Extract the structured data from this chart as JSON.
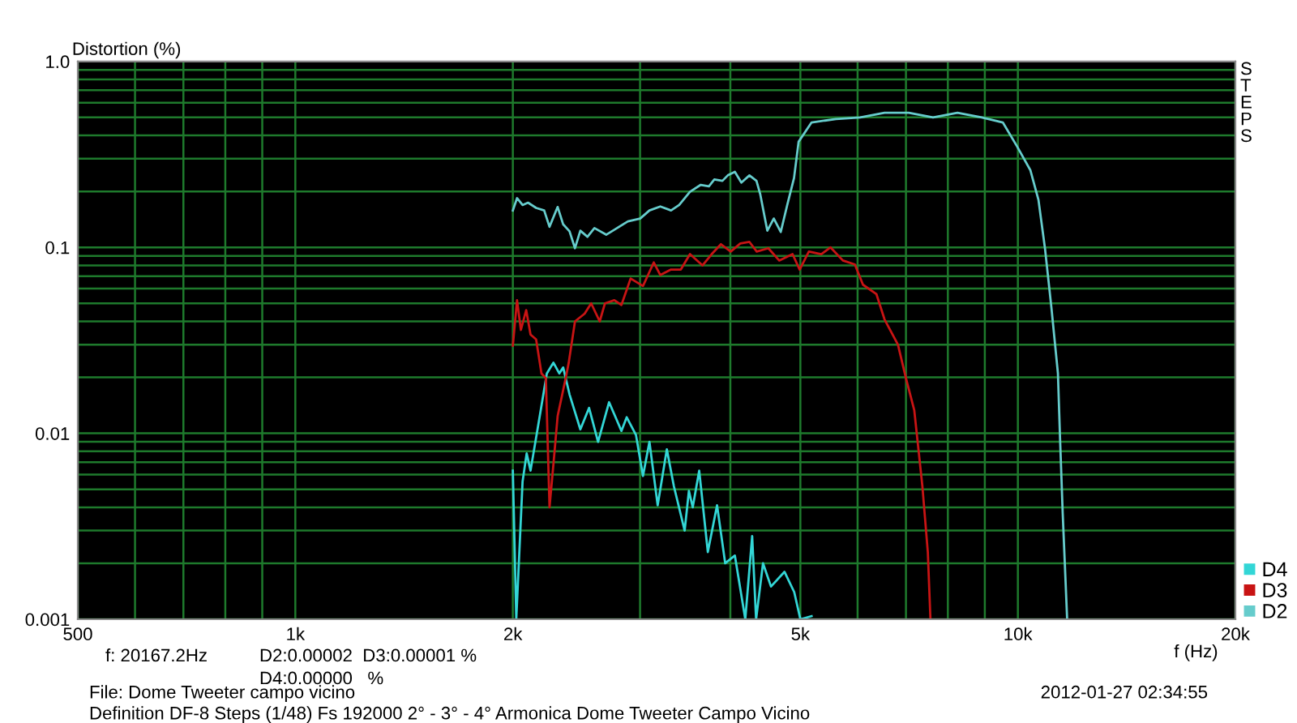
{
  "chart_data": {
    "type": "line",
    "ylabel": "Distortion (%)",
    "xlabel": "f (Hz)",
    "annotations": [
      "STEPS",
      "f: 20167.2Hz",
      "D2:0.00002  D3:0.00001 %",
      "D4:0.00000   %",
      "File: Dome Tweeter campo vicino",
      "Definition DF-8 Steps (1/48) Fs 192000 2° - 3° - 4° Armonica Dome Tweeter Campo Vicino",
      "2012-01-27 02:34:55"
    ],
    "log": "xy",
    "grid": true,
    "legend": "bottom right",
    "line_style": "solid",
    "xlim": [
      500,
      20000
    ],
    "ylim": [
      0.001,
      1
    ],
    "xticks": [
      500,
      {
        "value": 1000,
        "label": "1k"
      },
      {
        "value": 2000,
        "label": "2k"
      },
      {
        "value": 5000,
        "label": "5k"
      },
      {
        "value": 10000,
        "label": "10k"
      },
      {
        "value": 20000,
        "label": "20k"
      }
    ],
    "yticks": [
      0.001,
      0.01,
      0.1,
      {
        "value": 1,
        "label": "1.0"
      }
    ],
    "series": [
      {
        "name": "D4",
        "color": "#33d6d6",
        "x": [
          2000,
          2022,
          2063,
          2090,
          2116,
          2173,
          2229,
          2276,
          2319,
          2348,
          2396,
          2480,
          2550,
          2624,
          2718,
          2827,
          2875,
          2961,
          3028,
          3091,
          3173,
          3267,
          3341,
          3458,
          3505,
          3548,
          3622,
          3723,
          3834,
          3935,
          4058,
          4195,
          4288,
          4342,
          4439,
          4553,
          4753,
          4903,
          5000,
          5182
        ],
        "values": [
          0.0063,
          0.001,
          0.0055,
          0.0078,
          0.0063,
          0.0116,
          0.021,
          0.024,
          0.021,
          0.0226,
          0.0162,
          0.0105,
          0.0137,
          0.009,
          0.0147,
          0.0103,
          0.0122,
          0.0098,
          0.0059,
          0.009,
          0.0041,
          0.0082,
          0.0052,
          0.003,
          0.0049,
          0.004,
          0.0063,
          0.0023,
          0.0041,
          0.002,
          0.0022,
          0.001,
          0.0028,
          0.001,
          0.002,
          0.0015,
          0.0018,
          0.0014,
          0.001,
          0.00104
        ]
      },
      {
        "name": "D3",
        "color": "#c81414",
        "x": [
          2000,
          2027,
          2052,
          2087,
          2116,
          2154,
          2191,
          2222,
          2248,
          2276,
          2307,
          2367,
          2390,
          2438,
          2514,
          2567,
          2638,
          2682,
          2764,
          2827,
          2911,
          3028,
          3134,
          3200,
          3311,
          3416,
          3517,
          3661,
          3769,
          3882,
          4005,
          4129,
          4251,
          4351,
          4515,
          4674,
          4877,
          4989,
          5137,
          5345,
          5505,
          5725,
          5948,
          6104,
          6372,
          6538,
          6823,
          7000,
          7188,
          7376,
          7505,
          7568
        ],
        "values": [
          0.0296,
          0.052,
          0.036,
          0.046,
          0.034,
          0.032,
          0.021,
          0.0198,
          0.004,
          0.0068,
          0.0124,
          0.0198,
          0.024,
          0.04,
          0.044,
          0.05,
          0.04,
          0.05,
          0.052,
          0.049,
          0.068,
          0.062,
          0.083,
          0.071,
          0.076,
          0.076,
          0.092,
          0.08,
          0.092,
          0.104,
          0.095,
          0.105,
          0.107,
          0.095,
          0.099,
          0.085,
          0.092,
          0.076,
          0.095,
          0.092,
          0.1,
          0.085,
          0.081,
          0.063,
          0.056,
          0.041,
          0.03,
          0.0198,
          0.0133,
          0.0052,
          0.0023,
          0.001
        ]
      },
      {
        "name": "D2",
        "color": "#66cccc",
        "x": [
          2000,
          2027,
          2063,
          2099,
          2154,
          2210,
          2248,
          2307,
          2348,
          2396,
          2438,
          2480,
          2537,
          2594,
          2693,
          2788,
          2886,
          3001,
          3091,
          3200,
          3311,
          3398,
          3517,
          3640,
          3736,
          3801,
          3900,
          3967,
          4058,
          4143,
          4251,
          4347,
          4400,
          4500,
          4594,
          4697,
          4795,
          4900,
          4972,
          5182,
          5600,
          6050,
          6538,
          7063,
          7631,
          8249,
          8913,
          9531,
          9970,
          10407,
          10678,
          10901,
          11130,
          11361,
          11437,
          11536,
          11700
        ],
        "values": [
          0.158,
          0.184,
          0.169,
          0.174,
          0.163,
          0.158,
          0.129,
          0.165,
          0.133,
          0.122,
          0.099,
          0.123,
          0.114,
          0.127,
          0.117,
          0.127,
          0.138,
          0.143,
          0.158,
          0.166,
          0.158,
          0.169,
          0.199,
          0.217,
          0.213,
          0.232,
          0.228,
          0.244,
          0.255,
          0.223,
          0.244,
          0.228,
          0.193,
          0.123,
          0.143,
          0.121,
          0.169,
          0.236,
          0.37,
          0.47,
          0.49,
          0.5,
          0.53,
          0.53,
          0.5,
          0.53,
          0.5,
          0.47,
          0.35,
          0.26,
          0.18,
          0.099,
          0.047,
          0.021,
          0.0095,
          0.0037,
          0.001
        ]
      }
    ]
  }
}
